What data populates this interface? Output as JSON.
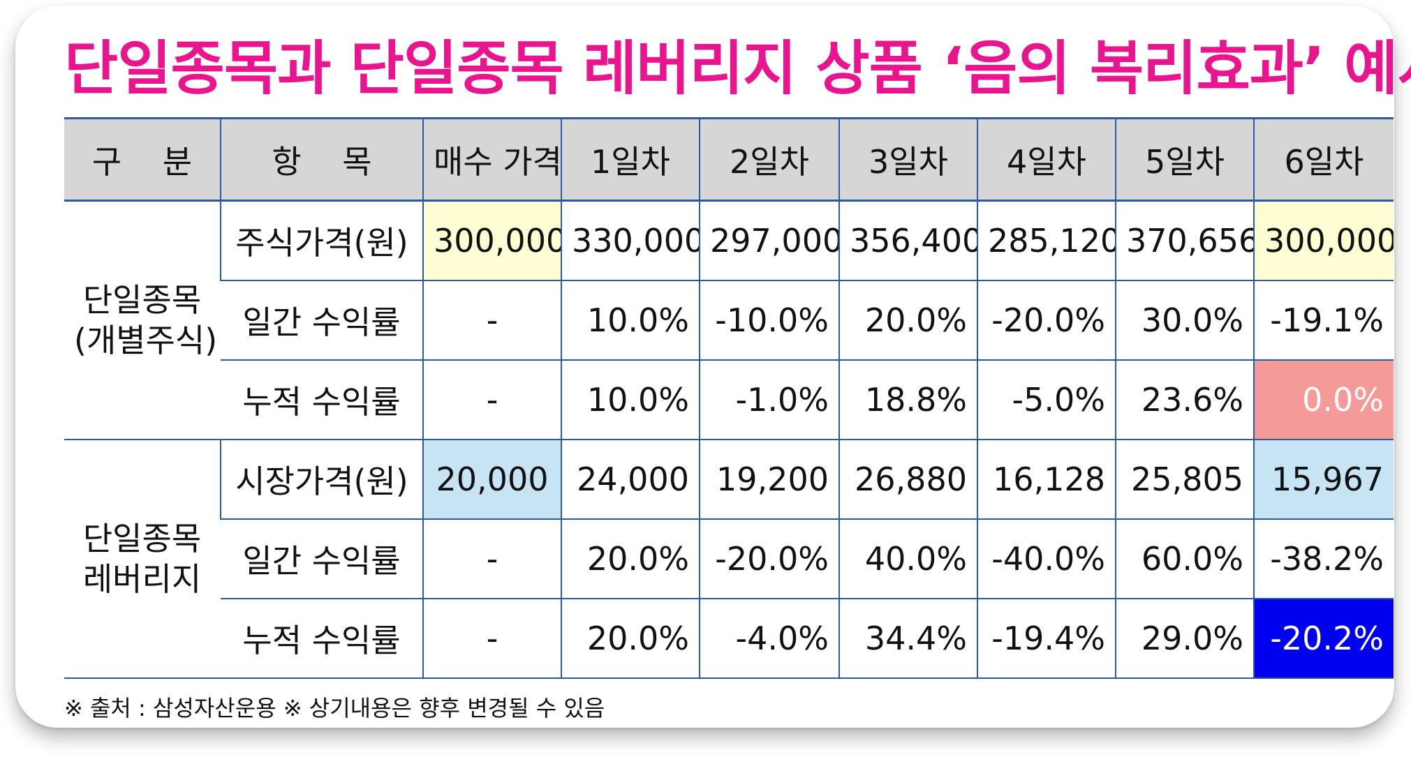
{
  "title": "단일종목과 단일종목 레버리지 상품 ‘음의 복리효과’ 예시",
  "header": [
    "구    분",
    "항    목",
    "매수 가격",
    "1일차",
    "2일차",
    "3일차",
    "4일차",
    "5일차",
    "6일차"
  ],
  "groups": [
    {
      "label_line1": "단일종목",
      "label_line2": "(개별주식)",
      "rows": [
        {
          "item": "주식가격(원)",
          "values": [
            "300,000",
            "330,000",
            "297,000",
            "356,400",
            "285,120",
            "370,656",
            "300,000"
          ]
        },
        {
          "item": "일간 수익률",
          "values": [
            "-",
            "10.0%",
            "-10.0%",
            "20.0%",
            "-20.0%",
            "30.0%",
            "-19.1%"
          ]
        },
        {
          "item": "누적 수익률",
          "values": [
            "-",
            "10.0%",
            "-1.0%",
            "18.8%",
            "-5.0%",
            "23.6%",
            "0.0%"
          ]
        }
      ]
    },
    {
      "label_line1": "단일종목",
      "label_line2": "레버리지",
      "rows": [
        {
          "item": "시장가격(원)",
          "values": [
            "20,000",
            "24,000",
            "19,200",
            "26,880",
            "16,128",
            "25,805",
            "15,967"
          ]
        },
        {
          "item": "일간 수익률",
          "values": [
            "-",
            "20.0%",
            "-20.0%",
            "40.0%",
            "-40.0%",
            "60.0%",
            "-38.2%"
          ]
        },
        {
          "item": "누적 수익률",
          "values": [
            "-",
            "20.0%",
            "-4.0%",
            "34.4%",
            "-19.4%",
            "29.0%",
            "-20.2%"
          ]
        }
      ]
    }
  ],
  "footnote": "※ 출처 : 삼성자산운용 ※ 상기내용은 향후 변경될 수 있음",
  "colors": {
    "title": "#e8158e",
    "grid_line": "#2a59a8",
    "header_bg": "#d6d6d6",
    "highlight_yellow": "#fffdd4",
    "highlight_light_blue": "#c6e4f3",
    "highlight_pink": "#f49a98",
    "highlight_navy": "#0000f0"
  }
}
